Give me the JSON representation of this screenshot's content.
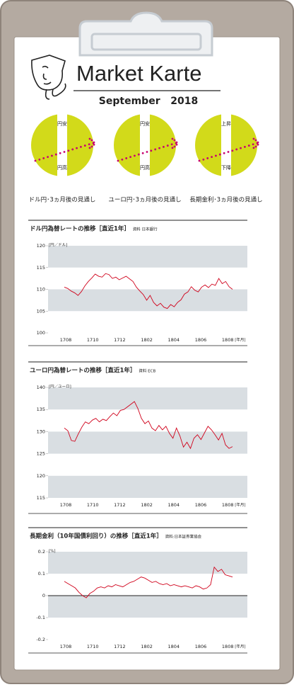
{
  "header": {
    "title": "Market Karte",
    "date": "September   2018"
  },
  "outlooks": [
    {
      "top": "円安",
      "bottom": "円高",
      "caption": "ドル円･3ヵ月後の見通し"
    },
    {
      "top": "円安",
      "bottom": "円高",
      "caption": "ユーロ円･3ヵ月後の見通し"
    },
    {
      "top": "上昇",
      "bottom": "下降",
      "caption": "長期金利･3ヵ月後の見通し"
    }
  ],
  "chart_data": [
    {
      "type": "line",
      "title": "ドル円為替レートの推移［直近1年］",
      "source": "資料 日本銀行",
      "y_unit": "[円／ドル]",
      "x_unit": "[年月]",
      "x_labels": [
        "1708",
        "1710",
        "1712",
        "1802",
        "1804",
        "1806",
        "1808"
      ],
      "color": "#d0021b",
      "ylim": [
        100,
        120
      ],
      "yticks": [
        100,
        105,
        110,
        115,
        120
      ],
      "banded": true,
      "zero_line": false,
      "values": [
        110.5,
        110.2,
        109.6,
        109.2,
        108.6,
        109.5,
        110.8,
        111.8,
        112.6,
        113.5,
        113.0,
        112.8,
        113.6,
        113.4,
        112.5,
        112.8,
        112.2,
        112.6,
        113.0,
        112.4,
        111.8,
        110.5,
        109.6,
        108.8,
        107.5,
        108.6,
        107.0,
        106.2,
        106.8,
        105.9,
        105.6,
        106.5,
        106.0,
        107.0,
        107.6,
        108.9,
        109.4,
        110.6,
        109.8,
        109.4,
        110.5,
        111.0,
        110.4,
        111.2,
        110.9,
        112.5,
        111.3,
        111.8,
        110.6,
        110.0
      ]
    },
    {
      "type": "line",
      "title": "ユーロ円為替レートの推移［直近1年］",
      "source": "資料 ECB",
      "y_unit": "[円／ユーロ]",
      "x_unit": "[年月]",
      "x_labels": [
        "1708",
        "1710",
        "1712",
        "1802",
        "1804",
        "1806",
        "1808"
      ],
      "color": "#d0021b",
      "ylim": [
        115,
        140
      ],
      "yticks": [
        115,
        120,
        125,
        130,
        135,
        140
      ],
      "banded": true,
      "zero_line": false,
      "values": [
        130.8,
        130.2,
        128.0,
        127.8,
        129.5,
        131.0,
        132.2,
        131.8,
        132.6,
        133.0,
        132.2,
        132.8,
        132.5,
        133.4,
        134.2,
        133.6,
        134.8,
        135.0,
        135.6,
        136.2,
        136.8,
        135.2,
        133.0,
        131.8,
        132.4,
        130.8,
        130.2,
        131.4,
        130.4,
        131.2,
        129.6,
        128.5,
        130.8,
        129.0,
        126.5,
        127.6,
        126.2,
        128.5,
        129.3,
        128.2,
        129.7,
        131.2,
        130.4,
        129.3,
        128.1,
        129.6,
        127.0,
        126.2,
        126.6
      ]
    },
    {
      "type": "line",
      "title": "長期金利（10年国債利回り）の推移［直近1年］",
      "source": "資料:日本証券業協会",
      "y_unit": "[%]",
      "x_unit": "[年月]",
      "x_labels": [
        "1708",
        "1710",
        "1712",
        "1802",
        "1804",
        "1806",
        "1808"
      ],
      "color": "#d0021b",
      "ylim": [
        -0.2,
        0.2
      ],
      "yticks": [
        -0.2,
        -0.1,
        0,
        0.1,
        0.2
      ],
      "banded": true,
      "zero_line": true,
      "values": [
        0.065,
        0.055,
        0.045,
        0.035,
        0.015,
        0.0,
        -0.01,
        0.01,
        0.02,
        0.035,
        0.04,
        0.035,
        0.045,
        0.04,
        0.05,
        0.045,
        0.04,
        0.05,
        0.06,
        0.065,
        0.075,
        0.085,
        0.08,
        0.07,
        0.06,
        0.065,
        0.055,
        0.05,
        0.055,
        0.045,
        0.05,
        0.045,
        0.04,
        0.045,
        0.04,
        0.035,
        0.045,
        0.04,
        0.03,
        0.035,
        0.05,
        0.13,
        0.11,
        0.12,
        0.095,
        0.09,
        0.085
      ]
    }
  ]
}
